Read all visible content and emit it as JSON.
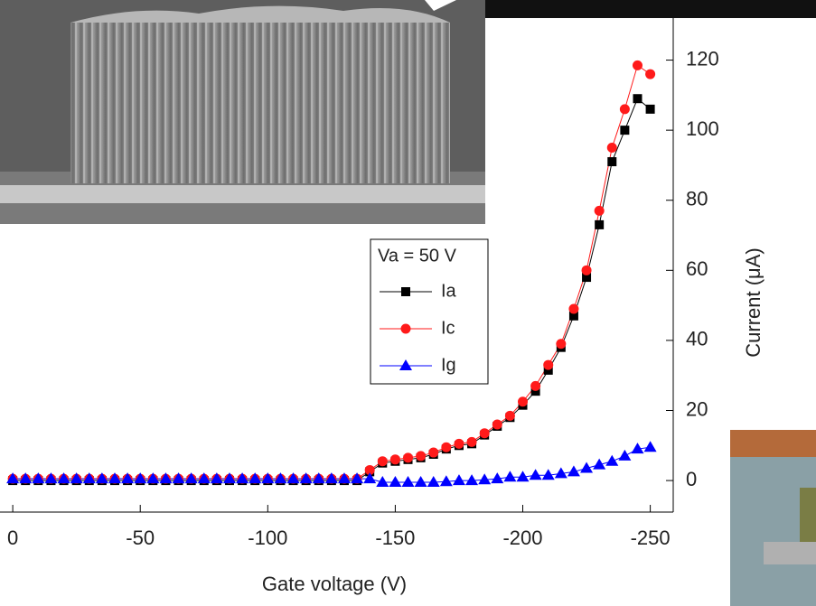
{
  "chart_data": {
    "type": "line",
    "x_label": "Gate voltage (V)",
    "y_label": "Current (μA)",
    "legend_title": "Va = 50 V",
    "x": [
      0,
      -5,
      -10,
      -15,
      -20,
      -25,
      -30,
      -35,
      -40,
      -45,
      -50,
      -55,
      -60,
      -65,
      -70,
      -75,
      -80,
      -85,
      -90,
      -95,
      -100,
      -105,
      -110,
      -115,
      -120,
      -125,
      -130,
      -135,
      -140,
      -145,
      -150,
      -155,
      -160,
      -165,
      -170,
      -175,
      -180,
      -185,
      -190,
      -195,
      -200,
      -205,
      -210,
      -215,
      -220,
      -225,
      -230,
      -235,
      -240,
      -245,
      -250
    ],
    "series": [
      {
        "name": "Ia",
        "color": "#000000",
        "marker": "square",
        "values": [
          0,
          0,
          0,
          0,
          0,
          0,
          0,
          0,
          0,
          0,
          0,
          0,
          0,
          0,
          0,
          0,
          0,
          0,
          0,
          0,
          0,
          0,
          0,
          0,
          0,
          0,
          0,
          0,
          2.5,
          5,
          5.5,
          6,
          6.5,
          7.5,
          9,
          10,
          10.5,
          13,
          15.5,
          18,
          21.5,
          25.5,
          31.5,
          38,
          47,
          58,
          73,
          91,
          100,
          109,
          106
        ]
      },
      {
        "name": "Ic",
        "color": "#ff1a1a",
        "marker": "circle",
        "values": [
          0.5,
          0.5,
          0.5,
          0.5,
          0.5,
          0.5,
          0.5,
          0.5,
          0.5,
          0.5,
          0.5,
          0.5,
          0.5,
          0.5,
          0.5,
          0.5,
          0.5,
          0.5,
          0.5,
          0.5,
          0.5,
          0.5,
          0.5,
          0.5,
          0.5,
          0.5,
          0.5,
          0.5,
          3,
          5.5,
          6,
          6.5,
          7,
          8,
          9.5,
          10.5,
          11,
          13.5,
          16,
          18.5,
          22.5,
          27,
          33,
          39,
          49,
          60,
          77,
          95,
          106,
          118.5,
          116
        ]
      },
      {
        "name": "Ig",
        "color": "#0000ff",
        "marker": "triangle",
        "values": [
          0.5,
          0.5,
          0.5,
          0.5,
          0.5,
          0.5,
          0.5,
          0.5,
          0.5,
          0.5,
          0.5,
          0.5,
          0.5,
          0.5,
          0.5,
          0.5,
          0.5,
          0.5,
          0.5,
          0.5,
          0.5,
          0.5,
          0.5,
          0.5,
          0.5,
          0.5,
          0.5,
          0.5,
          0.5,
          -0.5,
          -0.5,
          -0.5,
          -0.5,
          -0.5,
          -0.3,
          0,
          0,
          0.2,
          0.5,
          1,
          1,
          1.5,
          1.5,
          2,
          2.5,
          3.5,
          4.5,
          5.5,
          7,
          9,
          9.5
        ]
      }
    ],
    "xlim": [
      5,
      -259
    ],
    "xticks": [
      0,
      -50,
      -100,
      -150,
      -200,
      -250
    ],
    "ylim": [
      -9,
      132
    ],
    "yticks": [
      0,
      20,
      40,
      60,
      80,
      100,
      120
    ]
  }
}
